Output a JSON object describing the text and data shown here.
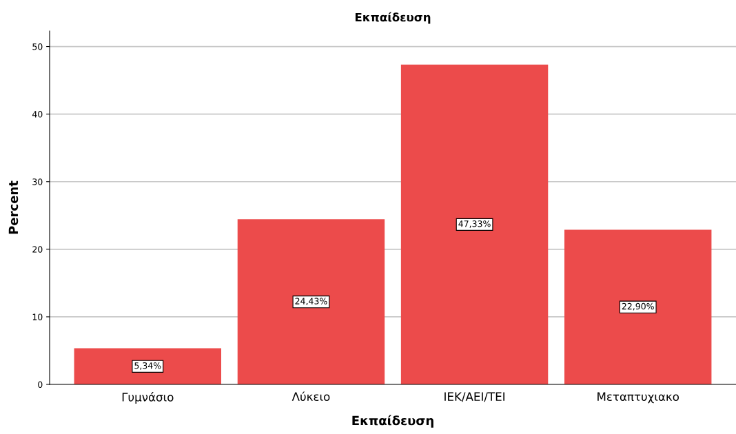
{
  "chart_data": {
    "type": "bar",
    "title": "Εκπαίδευση",
    "xlabel": "Εκπαίδευση",
    "ylabel": "Percent",
    "categories": [
      "Γυμνάσιο",
      "Λύκειο",
      "ΙΕΚ/ΑΕΙ/ΤΕΙ",
      "Μεταπτυχιακο"
    ],
    "values": [
      5.34,
      24.43,
      47.33,
      22.9
    ],
    "value_labels": [
      "5,34%",
      "24,43%",
      "47,33%",
      "22,90%"
    ],
    "color": "#ec4b4b",
    "ylim": [
      0,
      52.3
    ],
    "yticks": [
      0,
      10,
      20,
      30,
      40,
      50
    ],
    "grid": "y",
    "legend": false
  }
}
